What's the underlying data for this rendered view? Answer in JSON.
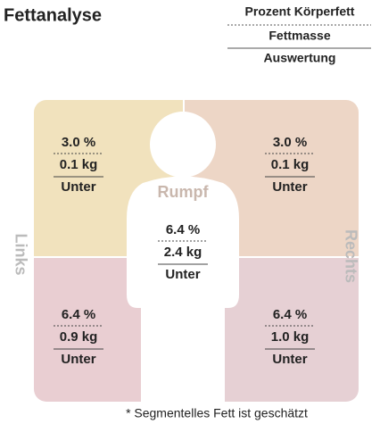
{
  "header": {
    "title": "Fettanalyse"
  },
  "legend": [
    "Prozent Körperfett",
    "Fettmasse",
    "Auswertung"
  ],
  "side_labels": {
    "left": "Links",
    "right": "Rechts"
  },
  "segments": [
    {
      "percent": "3.0 %",
      "mass": "0.1 kg",
      "rating": "Unter"
    },
    {
      "percent": "3.0 %",
      "mass": "0.1 kg",
      "rating": "Unter"
    },
    {
      "name": "Rumpf",
      "percent": "6.4 %",
      "mass": "2.4 kg",
      "rating": "Unter"
    },
    {
      "percent": "6.4 %",
      "mass": "0.9 kg",
      "rating": "Unter"
    },
    {
      "percent": "6.4 %",
      "mass": "1.0 kg",
      "rating": "Unter"
    }
  ],
  "footnote": "* Segmentelles Fett ist geschätzt"
}
